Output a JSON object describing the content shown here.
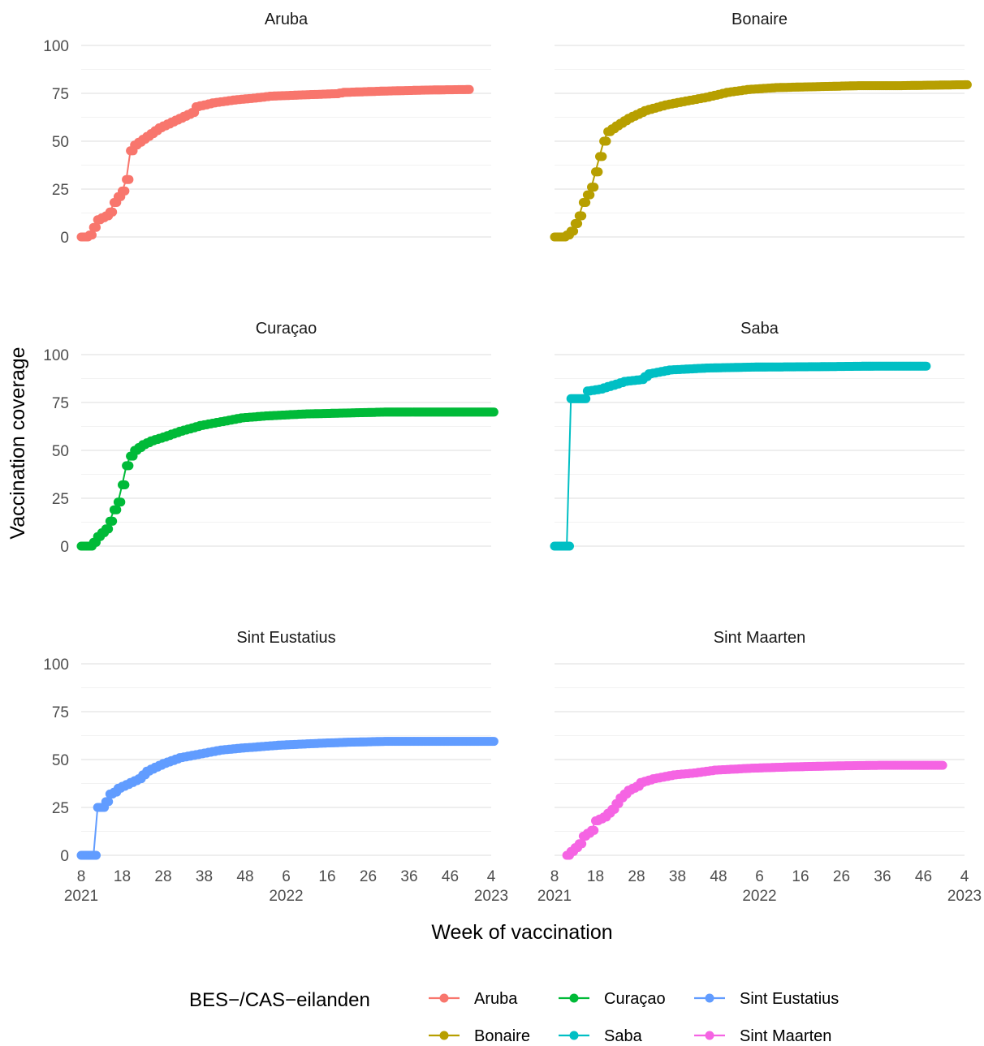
{
  "chart_data": {
    "type": "line",
    "xlabel": "Week of vaccination",
    "ylabel": "Vaccination coverage",
    "ylim": [
      0,
      100
    ],
    "y_ticks": [
      "0",
      "25",
      "50",
      "75",
      "100"
    ],
    "x_ticks": [
      {
        "week": "8",
        "year": "2021"
      },
      {
        "week": "18",
        "year": ""
      },
      {
        "week": "28",
        "year": ""
      },
      {
        "week": "38",
        "year": ""
      },
      {
        "week": "48",
        "year": ""
      },
      {
        "week": "6",
        "year": "2022"
      },
      {
        "week": "16",
        "year": ""
      },
      {
        "week": "26",
        "year": ""
      },
      {
        "week": "36",
        "year": ""
      },
      {
        "week": "46",
        "year": ""
      },
      {
        "week": "4",
        "year": "2023"
      }
    ],
    "legend": {
      "title": "BES−/CAS−eilanden",
      "placement": "bottom"
    },
    "grid": true,
    "series": [
      {
        "name": "Aruba",
        "color": "#F8766D",
        "points": [
          [
            "2021-W08",
            0
          ],
          [
            "2021-W09",
            0
          ],
          [
            "2021-W10",
            1
          ],
          [
            "2021-W11",
            5
          ],
          [
            "2021-W12",
            9
          ],
          [
            "2021-W13",
            10
          ],
          [
            "2021-W14",
            11
          ],
          [
            "2021-W15",
            13
          ],
          [
            "2021-W16",
            18
          ],
          [
            "2021-W17",
            21
          ],
          [
            "2021-W18",
            24
          ],
          [
            "2021-W19",
            30
          ],
          [
            "2021-W20",
            45
          ],
          [
            "2021-W21",
            48
          ],
          [
            "2021-W23",
            51
          ],
          [
            "2021-W25",
            54
          ],
          [
            "2021-W27",
            57
          ],
          [
            "2021-W30",
            60
          ],
          [
            "2021-W33",
            63
          ],
          [
            "2021-W35",
            65
          ],
          [
            "2021-W36",
            68
          ],
          [
            "2021-W40",
            70
          ],
          [
            "2021-W45",
            71.5
          ],
          [
            "2021-W50",
            72.5
          ],
          [
            "2022-W02",
            73.5
          ],
          [
            "2022-W10",
            74.2
          ],
          [
            "2022-W18",
            74.8
          ],
          [
            "2022-W20",
            75.5
          ],
          [
            "2022-W30",
            76.2
          ],
          [
            "2022-W40",
            76.7
          ],
          [
            "2022-W50",
            77
          ]
        ]
      },
      {
        "name": "Bonaire",
        "color": "#B79F00",
        "points": [
          [
            "2021-W08",
            0
          ],
          [
            "2021-W10",
            0
          ],
          [
            "2021-W11",
            1
          ],
          [
            "2021-W12",
            3
          ],
          [
            "2021-W13",
            7
          ],
          [
            "2021-W14",
            11
          ],
          [
            "2021-W15",
            18
          ],
          [
            "2021-W16",
            22
          ],
          [
            "2021-W17",
            26
          ],
          [
            "2021-W18",
            34
          ],
          [
            "2021-W19",
            42
          ],
          [
            "2021-W20",
            50
          ],
          [
            "2021-W21",
            55
          ],
          [
            "2021-W23",
            58
          ],
          [
            "2021-W26",
            62
          ],
          [
            "2021-W30",
            66
          ],
          [
            "2021-W35",
            69
          ],
          [
            "2021-W40",
            71
          ],
          [
            "2021-W45",
            73
          ],
          [
            "2021-W50",
            75.5
          ],
          [
            "2022-W03",
            77
          ],
          [
            "2022-W10",
            78
          ],
          [
            "2022-W20",
            78.5
          ],
          [
            "2022-W30",
            79
          ],
          [
            "2022-W40",
            79
          ],
          [
            "2023-W04",
            79.5
          ]
        ]
      },
      {
        "name": "Curaçao",
        "color": "#00BA38",
        "points": [
          [
            "2021-W08",
            0
          ],
          [
            "2021-W10",
            0
          ],
          [
            "2021-W11",
            2
          ],
          [
            "2021-W12",
            5
          ],
          [
            "2021-W13",
            7
          ],
          [
            "2021-W14",
            9
          ],
          [
            "2021-W15",
            13
          ],
          [
            "2021-W16",
            19
          ],
          [
            "2021-W17",
            23
          ],
          [
            "2021-W18",
            32
          ],
          [
            "2021-W19",
            42
          ],
          [
            "2021-W20",
            47
          ],
          [
            "2021-W21",
            50
          ],
          [
            "2021-W23",
            53
          ],
          [
            "2021-W25",
            55
          ],
          [
            "2021-W28",
            57
          ],
          [
            "2021-W32",
            60
          ],
          [
            "2021-W37",
            63
          ],
          [
            "2021-W42",
            65
          ],
          [
            "2021-W47",
            67
          ],
          [
            "2022-W01",
            68
          ],
          [
            "2022-W10",
            69
          ],
          [
            "2022-W20",
            69.5
          ],
          [
            "2022-W30",
            70
          ],
          [
            "2022-W40",
            70
          ],
          [
            "2023-W04",
            70
          ]
        ]
      },
      {
        "name": "Saba",
        "color": "#00BFC4",
        "points": [
          [
            "2021-W08",
            0
          ],
          [
            "2021-W11",
            0
          ],
          [
            "2021-W12",
            77
          ],
          [
            "2021-W15",
            77
          ],
          [
            "2021-W16",
            81
          ],
          [
            "2021-W19",
            82
          ],
          [
            "2021-W22",
            84
          ],
          [
            "2021-W25",
            86
          ],
          [
            "2021-W29",
            87
          ],
          [
            "2021-W31",
            90
          ],
          [
            "2021-W36",
            92
          ],
          [
            "2021-W45",
            93
          ],
          [
            "2022-W05",
            93.5
          ],
          [
            "2022-W20",
            93.7
          ],
          [
            "2022-W35",
            94
          ],
          [
            "2022-W46",
            94
          ]
        ]
      },
      {
        "name": "Sint Eustatius",
        "color": "#619CFF",
        "points": [
          [
            "2021-W08",
            0
          ],
          [
            "2021-W11",
            0
          ],
          [
            "2021-W12",
            25
          ],
          [
            "2021-W13",
            25
          ],
          [
            "2021-W14",
            28
          ],
          [
            "2021-W15",
            32
          ],
          [
            "2021-W16",
            33
          ],
          [
            "2021-W17",
            35
          ],
          [
            "2021-W19",
            37
          ],
          [
            "2021-W22",
            40
          ],
          [
            "2021-W24",
            44
          ],
          [
            "2021-W26",
            46
          ],
          [
            "2021-W28",
            48
          ],
          [
            "2021-W32",
            51
          ],
          [
            "2021-W37",
            53
          ],
          [
            "2021-W42",
            55
          ],
          [
            "2021-W47",
            56
          ],
          [
            "2022-W04",
            57.5
          ],
          [
            "2022-W14",
            58.5
          ],
          [
            "2022-W20",
            59
          ],
          [
            "2022-W30",
            59.5
          ],
          [
            "2022-W40",
            59.5
          ],
          [
            "2023-W04",
            59.5
          ]
        ]
      },
      {
        "name": "Sint Maarten",
        "color": "#F564E3",
        "points": [
          [
            "2021-W11",
            0
          ],
          [
            "2021-W12",
            2
          ],
          [
            "2021-W13",
            4
          ],
          [
            "2021-W14",
            6
          ],
          [
            "2021-W15",
            10
          ],
          [
            "2021-W17",
            13
          ],
          [
            "2021-W18",
            18
          ],
          [
            "2021-W20",
            20
          ],
          [
            "2021-W22",
            24
          ],
          [
            "2021-W24",
            30
          ],
          [
            "2021-W26",
            34
          ],
          [
            "2021-W28",
            36
          ],
          [
            "2021-W29",
            38
          ],
          [
            "2021-W32",
            40
          ],
          [
            "2021-W37",
            42
          ],
          [
            "2021-W42",
            43
          ],
          [
            "2021-W47",
            44.5
          ],
          [
            "2022-W04",
            45.5
          ],
          [
            "2022-W14",
            46.2
          ],
          [
            "2022-W25",
            46.7
          ],
          [
            "2022-W35",
            47
          ],
          [
            "2022-W50",
            47
          ]
        ]
      }
    ]
  }
}
